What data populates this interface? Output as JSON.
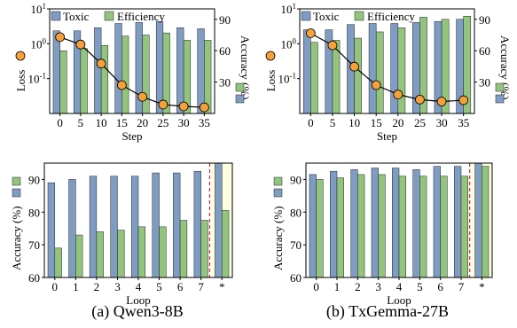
{
  "colors": {
    "toxic": "#7F9CC3",
    "efficiency": "#93C47D",
    "loss": "#F5A03A",
    "highlight": "#FDFDE0",
    "dashed": "#D62728",
    "axis": "#000000"
  },
  "captions": [
    "(a) Qwen3-8B",
    "(b) TxGemma-27B"
  ],
  "chart_data": [
    {
      "type": "bar",
      "panel": "a-top",
      "xlabel": "Step",
      "ylabel": "Loss",
      "ylabel_right": "Accuracy (%)",
      "categories": [
        "0",
        "5",
        "10",
        "15",
        "20",
        "25",
        "30",
        "35"
      ],
      "y_scale": "log",
      "ylim": [
        0.01,
        10
      ],
      "yticks": [
        {
          "label": "10",
          "sup": "1"
        },
        {
          "label": "10",
          "sup": "0"
        },
        {
          "label": "10",
          "sup": "-1"
        }
      ],
      "y2lim": [
        0,
        100
      ],
      "y2ticks": [
        "30",
        "60",
        "90"
      ],
      "series": [
        {
          "name": "Toxic",
          "axis": "right",
          "values": [
            79,
            79,
            82,
            86,
            87,
            88,
            82,
            81
          ]
        },
        {
          "name": "Efficiency",
          "axis": "right",
          "values": [
            60,
            62,
            65,
            74,
            75,
            77,
            70,
            70
          ]
        },
        {
          "axis": "left",
          "kind": "line",
          "values": [
            1.55,
            0.95,
            0.27,
            0.065,
            0.03,
            0.018,
            0.016,
            0.015
          ]
        }
      ],
      "legend": "top-left"
    },
    {
      "type": "bar",
      "panel": "b-top",
      "xlabel": "Step",
      "ylabel": "Loss",
      "ylabel_right": "Accuracy (%)",
      "categories": [
        "0",
        "5",
        "10",
        "15",
        "20",
        "25",
        "30",
        "35"
      ],
      "y_scale": "log",
      "ylim": [
        0.01,
        10
      ],
      "yticks": [
        {
          "label": "10",
          "sup": "1"
        },
        {
          "label": "10",
          "sup": "0"
        },
        {
          "label": "10",
          "sup": "-1"
        }
      ],
      "y2lim": [
        0,
        100
      ],
      "y2ticks": [
        "30",
        "60",
        "90"
      ],
      "series": [
        {
          "name": "Toxic",
          "axis": "right",
          "values": [
            80,
            80,
            85,
            86,
            86,
            87,
            88,
            90
          ]
        },
        {
          "name": "Efficiency",
          "axis": "right",
          "values": [
            68,
            70,
            72,
            78,
            82,
            92,
            90,
            93
          ]
        },
        {
          "axis": "left",
          "kind": "line",
          "values": [
            2.0,
            0.9,
            0.22,
            0.065,
            0.035,
            0.025,
            0.022,
            0.024
          ]
        }
      ],
      "legend": "top-left"
    },
    {
      "type": "bar",
      "panel": "a-bottom",
      "xlabel": "Loop",
      "ylabel": "Accuracy (%)",
      "categories": [
        "0",
        "1",
        "2",
        "3",
        "4",
        "5",
        "6",
        "7",
        "*"
      ],
      "ylim": [
        60,
        95
      ],
      "yticks": [
        "60",
        "70",
        "80",
        "90"
      ],
      "series": [
        {
          "name": "Toxic",
          "values": [
            89,
            90,
            91,
            91,
            91,
            92,
            92,
            92.5,
            95
          ]
        },
        {
          "name": "Efficiency",
          "values": [
            69,
            73,
            74,
            74.5,
            75.5,
            75.5,
            77.5,
            77.5,
            80.5
          ]
        }
      ],
      "highlight_category": "*"
    },
    {
      "type": "bar",
      "panel": "b-bottom",
      "xlabel": "Loop",
      "ylabel": "Accuracy (%)",
      "categories": [
        "0",
        "1",
        "2",
        "3",
        "4",
        "5",
        "6",
        "7",
        "*"
      ],
      "ylim": [
        60,
        95
      ],
      "yticks": [
        "60",
        "70",
        "80",
        "90"
      ],
      "series": [
        {
          "name": "Toxic",
          "values": [
            91.5,
            92.5,
            93,
            93.5,
            93.5,
            93,
            94,
            94,
            95
          ]
        },
        {
          "name": "Efficiency",
          "values": [
            90,
            90.5,
            91.5,
            91.5,
            91,
            91,
            91,
            91,
            94
          ]
        }
      ],
      "highlight_category": "*"
    }
  ]
}
